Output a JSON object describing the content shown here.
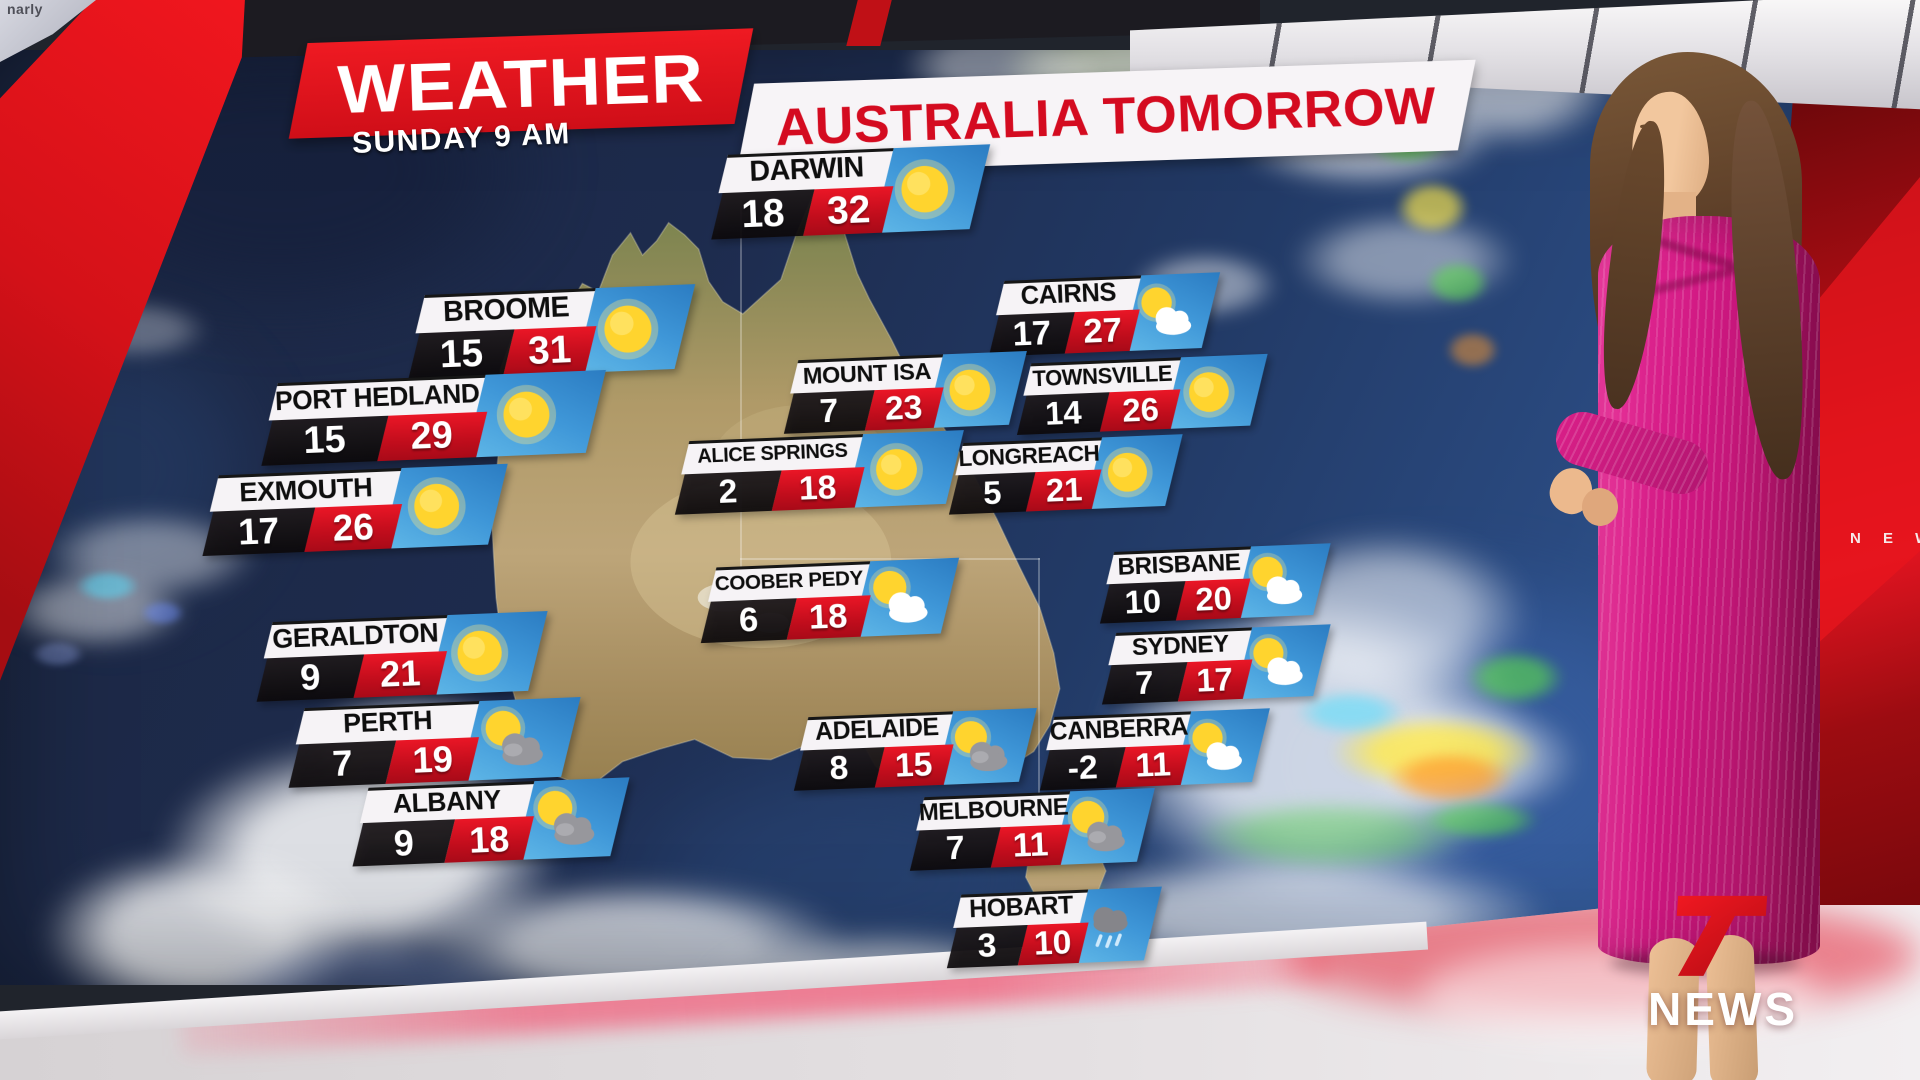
{
  "watermark": "narly",
  "program": {
    "title": "WEATHER",
    "subtitle": "AUSTRALIA TOMORROW",
    "timestamp": "SUNDAY 9 AM"
  },
  "channel": {
    "name": "NEWS",
    "wall_text": "N E W"
  },
  "colors": {
    "banner_red": "#e01320",
    "banner_text_red": "#d40b20",
    "card_red": "#d00f22",
    "card_black": "#151114",
    "card_sky_blue": "#3b92d4",
    "map_ocean": "#1d2b4d",
    "map_land": "#b09a68"
  },
  "cities": [
    {
      "name": "DARWIN",
      "low": 18,
      "high": 32,
      "condition": "sunny"
    },
    {
      "name": "BROOME",
      "low": 15,
      "high": 31,
      "condition": "sunny"
    },
    {
      "name": "PORT HEDLAND",
      "low": 15,
      "high": 29,
      "condition": "sunny"
    },
    {
      "name": "EXMOUTH",
      "low": 17,
      "high": 26,
      "condition": "sunny"
    },
    {
      "name": "GERALDTON",
      "low": 9,
      "high": 21,
      "condition": "sunny"
    },
    {
      "name": "PERTH",
      "low": 7,
      "high": 19,
      "condition": "partly-cloudy-gray"
    },
    {
      "name": "ALBANY",
      "low": 9,
      "high": 18,
      "condition": "partly-cloudy-gray"
    },
    {
      "name": "CAIRNS",
      "low": 17,
      "high": 27,
      "condition": "partly-cloudy"
    },
    {
      "name": "MOUNT ISA",
      "low": 7,
      "high": 23,
      "condition": "sunny"
    },
    {
      "name": "TOWNSVILLE",
      "low": 14,
      "high": 26,
      "condition": "sunny"
    },
    {
      "name": "ALICE SPRINGS",
      "low": 2,
      "high": 18,
      "condition": "sunny"
    },
    {
      "name": "LONGREACH",
      "low": 5,
      "high": 21,
      "condition": "sunny"
    },
    {
      "name": "COOBER PEDY",
      "low": 6,
      "high": 18,
      "condition": "partly-cloudy"
    },
    {
      "name": "BRISBANE",
      "low": 10,
      "high": 20,
      "condition": "partly-cloudy"
    },
    {
      "name": "SYDNEY",
      "low": 7,
      "high": 17,
      "condition": "partly-cloudy"
    },
    {
      "name": "ADELAIDE",
      "low": 8,
      "high": 15,
      "condition": "partly-cloudy-gray"
    },
    {
      "name": "CANBERRA",
      "low": -2,
      "high": 11,
      "condition": "partly-cloudy"
    },
    {
      "name": "MELBOURNE",
      "low": 7,
      "high": 11,
      "condition": "partly-cloudy-gray"
    },
    {
      "name": "HOBART",
      "low": 3,
      "high": 10,
      "condition": "rain"
    }
  ]
}
